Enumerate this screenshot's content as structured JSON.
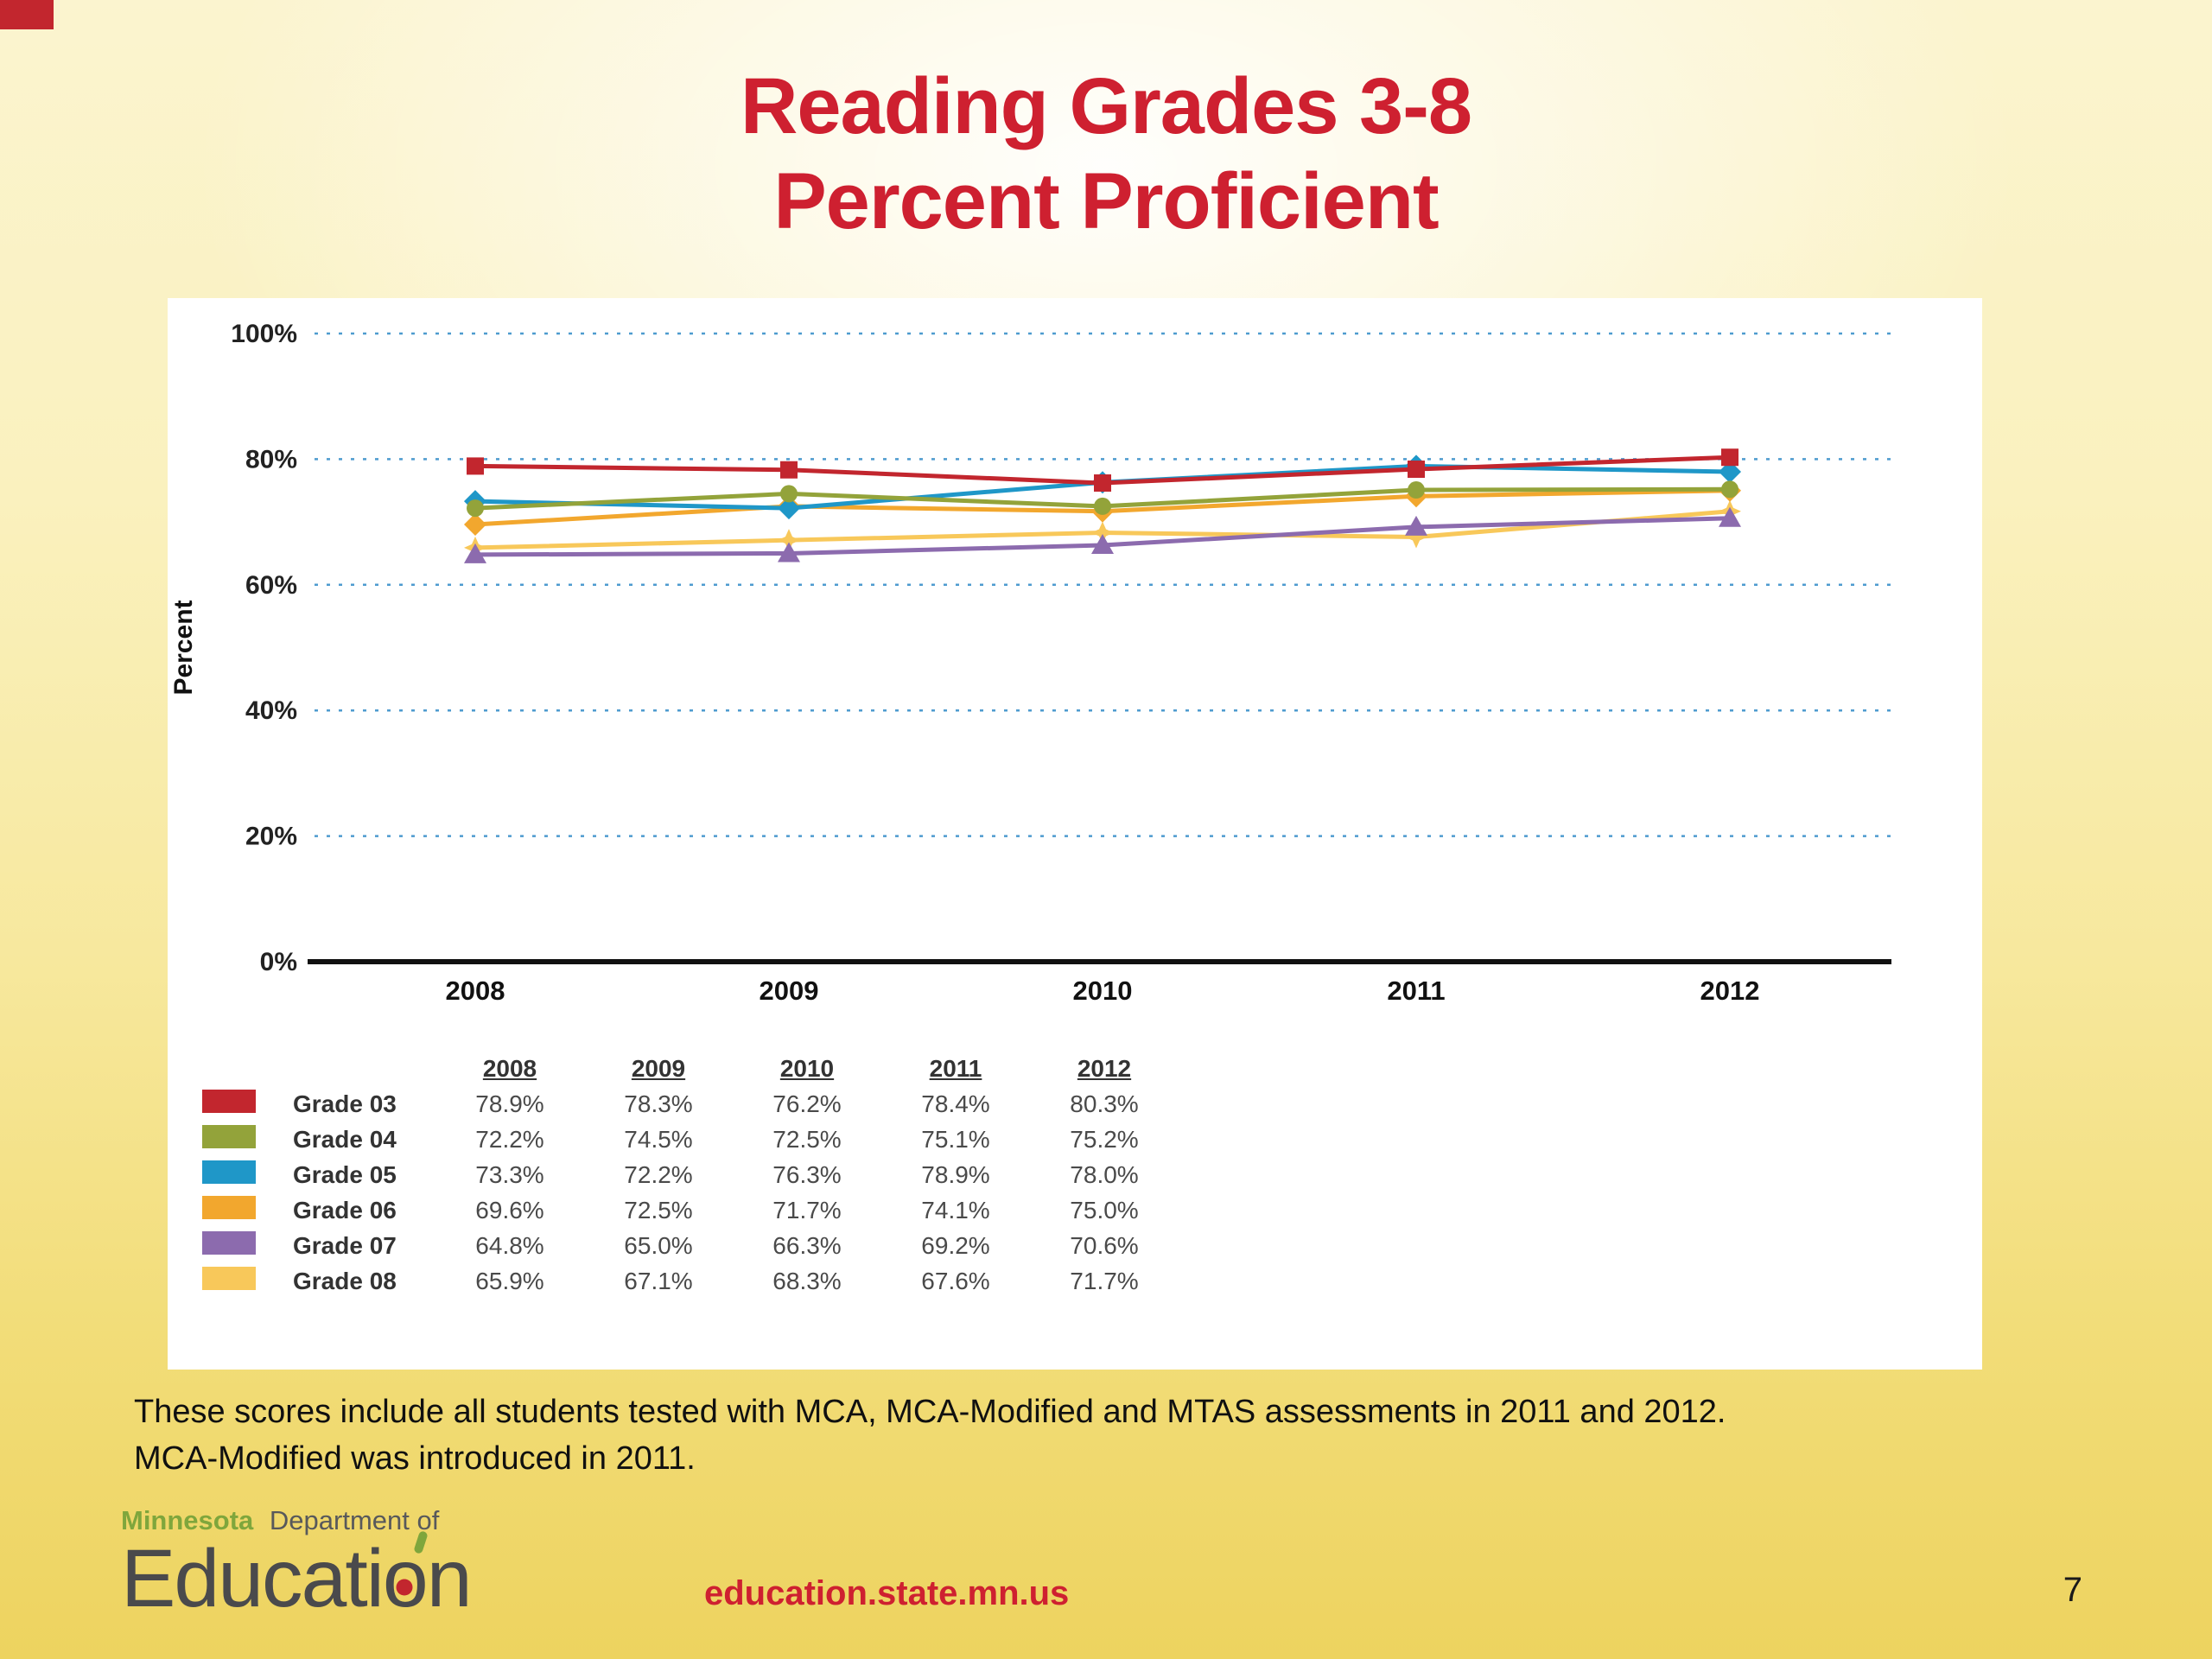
{
  "slide": {
    "title_line1": "Reading Grades 3-8",
    "title_line2": "Percent Proficient",
    "footnote_line1": "These scores include all students tested with MCA, MCA-Modified and MTAS assessments in 2011 and 2012.",
    "footnote_line2": "MCA-Modified was introduced in 2011."
  },
  "chart_data": {
    "type": "line",
    "title": "Reading Grades 3-8 Percent Proficient",
    "ylabel": "Percent",
    "categories": [
      "2008",
      "2009",
      "2010",
      "2011",
      "2012"
    ],
    "ylim": [
      0,
      100
    ],
    "ytick_step": 20,
    "yticks_labels": [
      "0%",
      "20%",
      "40%",
      "60%",
      "80%",
      "100%"
    ],
    "grid": "dashed-horizontal",
    "gridline_color": "#4E9BCF",
    "legend_position": "table-below",
    "series": [
      {
        "name": "Grade 03",
        "color": "#C2262E",
        "marker": "square",
        "values": [
          78.9,
          78.3,
          76.2,
          78.4,
          80.3
        ]
      },
      {
        "name": "Grade 04",
        "color": "#93A33A",
        "marker": "circle",
        "values": [
          72.2,
          74.5,
          72.5,
          75.1,
          75.2
        ]
      },
      {
        "name": "Grade 05",
        "color": "#1F97C8",
        "marker": "diamond",
        "values": [
          73.3,
          72.2,
          76.3,
          78.9,
          78.0
        ]
      },
      {
        "name": "Grade 06",
        "color": "#F2A72E",
        "marker": "diamond",
        "values": [
          69.6,
          72.5,
          71.7,
          74.1,
          75.0
        ]
      },
      {
        "name": "Grade 07",
        "color": "#8C6BAE",
        "marker": "triangle",
        "values": [
          64.8,
          65.0,
          66.3,
          69.2,
          70.6
        ]
      },
      {
        "name": "Grade 08",
        "color": "#F8C85A",
        "marker": "star",
        "values": [
          65.9,
          67.1,
          68.3,
          67.6,
          71.7
        ]
      }
    ]
  },
  "legend_table": {
    "year_headers": [
      "2008",
      "2009",
      "2010",
      "2011",
      "2012"
    ],
    "rows": [
      {
        "label": "Grade 03",
        "values": [
          "78.9%",
          "78.3%",
          "76.2%",
          "78.4%",
          "80.3%"
        ]
      },
      {
        "label": "Grade 04",
        "values": [
          "72.2%",
          "74.5%",
          "72.5%",
          "75.1%",
          "75.2%"
        ]
      },
      {
        "label": "Grade 05",
        "values": [
          "73.3%",
          "72.2%",
          "76.3%",
          "78.9%",
          "78.0%"
        ]
      },
      {
        "label": "Grade 06",
        "values": [
          "69.6%",
          "72.5%",
          "71.7%",
          "74.1%",
          "75.0%"
        ]
      },
      {
        "label": "Grade 07",
        "values": [
          "64.8%",
          "65.0%",
          "66.3%",
          "69.2%",
          "70.6%"
        ]
      },
      {
        "label": "Grade 08",
        "values": [
          "65.9%",
          "67.1%",
          "68.3%",
          "67.6%",
          "71.7%"
        ]
      }
    ]
  },
  "footer": {
    "logo_minnesota": "Minnesota",
    "logo_department": "Department of",
    "logo_education_left": "Educati",
    "logo_education_o": "o",
    "logo_education_right": "n",
    "url": "education.state.mn.us",
    "page_number": "7"
  },
  "colors": {
    "title_red": "#CE2030",
    "grid_blue": "#4E9BCF"
  }
}
